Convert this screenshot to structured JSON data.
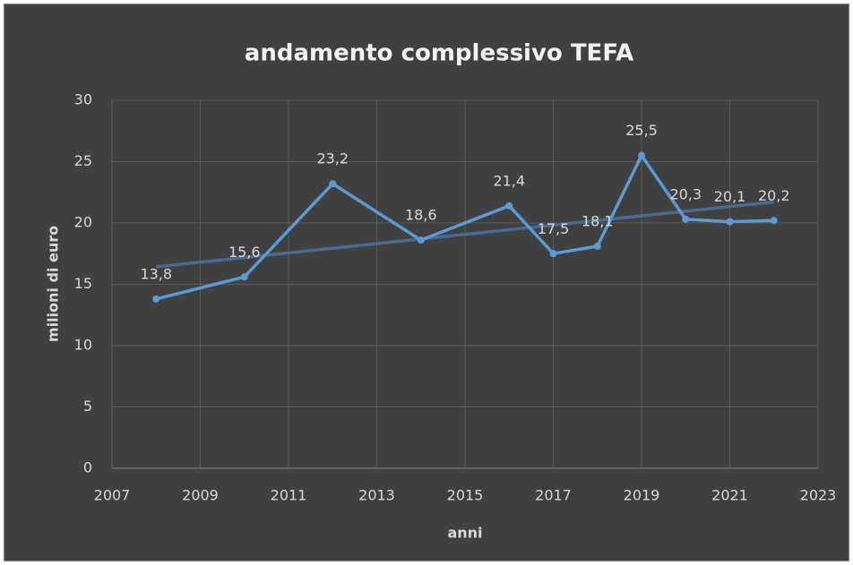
{
  "chart_data": {
    "type": "line",
    "title": "andamento complessivo TEFA",
    "xlabel": "anni",
    "ylabel": "milioni di euro",
    "x": [
      2008,
      2010,
      2012,
      2014,
      2016,
      2017,
      2018,
      2019,
      2020,
      2021,
      2022
    ],
    "series": [
      {
        "color": "#5b9bd5",
        "values": [
          13.8,
          15.6,
          23.2,
          18.6,
          21.4,
          17.5,
          18.1,
          25.5,
          20.3,
          20.1,
          20.2
        ],
        "value_labels": [
          "13,8",
          "15,6",
          "23,2",
          "18,6",
          "21,4",
          "17,5",
          "18,1",
          "25,5",
          "20,3",
          "20,1",
          "20,2"
        ]
      }
    ],
    "trendline": "linear",
    "trendline_color": "#4a6a8f",
    "xlim": [
      2007,
      2023
    ],
    "xticks": [
      2007,
      2009,
      2011,
      2013,
      2015,
      2017,
      2019,
      2021,
      2023
    ],
    "ylim": [
      0,
      30
    ],
    "yticks": [
      0,
      5,
      10,
      15,
      20,
      25,
      30
    ],
    "grid": true
  }
}
